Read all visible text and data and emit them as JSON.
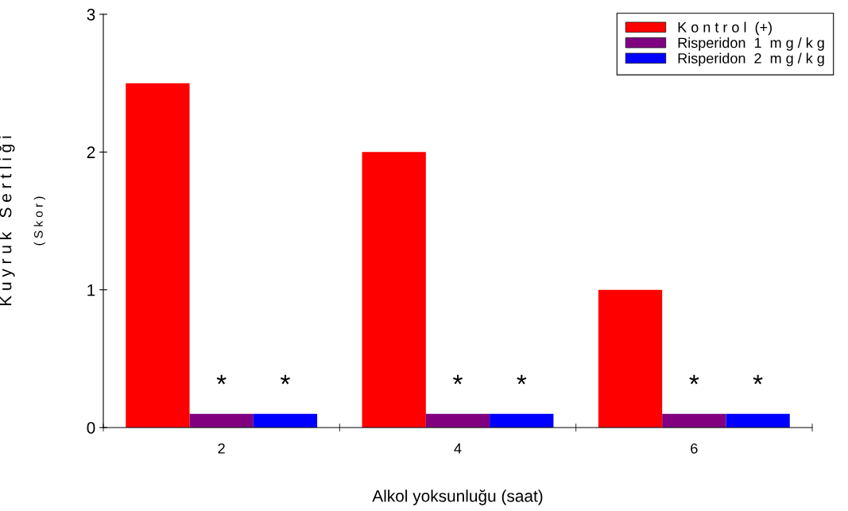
{
  "chart_data": {
    "type": "bar",
    "xlabel": "Alkol yoksunluğu (saat)",
    "ylabel": "K u y r u k   S e r t l i ğ i",
    "annotations": [
      "( S k o r )",
      "*",
      "*",
      "*",
      "*",
      "*",
      "*"
    ],
    "categories": [
      "2",
      "4",
      "6"
    ],
    "series": [
      {
        "name": "K o n t r o l  (+)",
        "color": "#ff0000",
        "values": [
          2.5,
          2.0,
          1.0
        ]
      },
      {
        "name": "Risperidon  1  m g / k g",
        "color": "#800080",
        "values": [
          0.1,
          0.1,
          0.1
        ]
      },
      {
        "name": "Risperidon  2  m g / k g",
        "color": "#0000ff",
        "values": [
          0.1,
          0.1,
          0.1
        ]
      }
    ],
    "ylim": [
      0,
      3
    ],
    "yticks": [
      0,
      1,
      2,
      3
    ],
    "grid": false,
    "legend": "top right"
  }
}
